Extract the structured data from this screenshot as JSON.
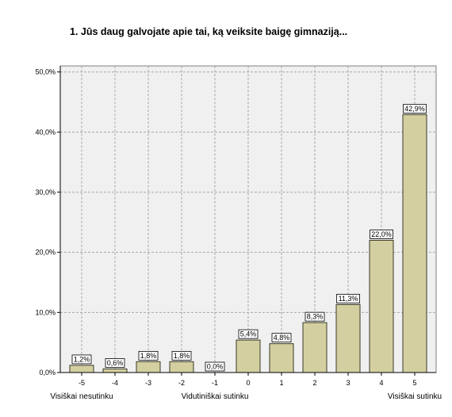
{
  "chart_data": {
    "type": "bar",
    "title": "1. Jūs daug galvojate apie tai, ką veiksite baigę gimnaziją...",
    "categories": [
      "-5",
      "-4",
      "-3",
      "-2",
      "-1",
      "0",
      "1",
      "2",
      "3",
      "4",
      "5"
    ],
    "values": [
      1.2,
      0.6,
      1.8,
      1.8,
      0.0,
      5.4,
      4.8,
      8.3,
      11.3,
      22.0,
      42.9
    ],
    "value_labels": [
      "1,2%",
      "0,6%",
      "1,8%",
      "1,8%",
      "0,0%",
      "5,4%",
      "4,8%",
      "8,3%",
      "11,3%",
      "22,0%",
      "42,9%"
    ],
    "yticks": [
      0,
      10,
      20,
      30,
      40,
      50
    ],
    "ytick_labels": [
      "0,0%",
      "10,0%",
      "20,0%",
      "30,0%",
      "40,0%",
      "50,0%"
    ],
    "ylim": [
      0,
      51
    ],
    "grid": true,
    "bar_color": "#d3cfa0",
    "bar_edge": "#3a3a2a",
    "axis_annotations": [
      {
        "category": "-5",
        "text": "Visiškai nesutinku"
      },
      {
        "category": "-1",
        "text": "Vidutiniškai sutinku"
      },
      {
        "category": "5",
        "text": "Visiškai sutinku"
      }
    ]
  }
}
